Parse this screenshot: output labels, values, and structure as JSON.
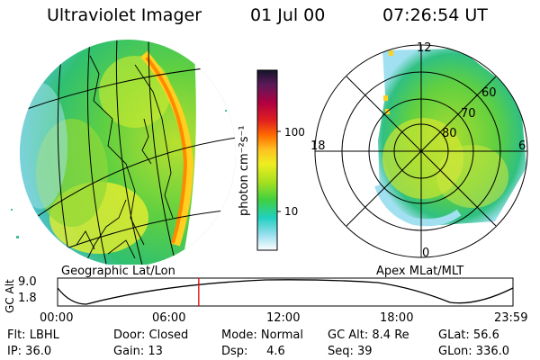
{
  "header": {
    "title": "Ultraviolet Imager",
    "date": "01 Jul 00",
    "time": "07:26:54 UT"
  },
  "colorbar": {
    "unit_label": "photon cm⁻²s⁻¹",
    "ticks": [
      "100",
      "10"
    ],
    "colors": [
      "#1a1a2a",
      "#5a1a5a",
      "#b00040",
      "#e02020",
      "#ff6a00",
      "#ffc020",
      "#eeee20",
      "#a8e020",
      "#40d040",
      "#20d0c0",
      "#a0e0f0",
      "#ffffff"
    ]
  },
  "left_panel": {
    "caption": "Geographic Lat/Lon"
  },
  "right_panel": {
    "caption": "Apex MLat/MLT",
    "mlt_labels": {
      "top": "12",
      "left": "18",
      "right": "6",
      "bottom": "0"
    },
    "lat_labels": [
      "60",
      "70",
      "80"
    ]
  },
  "timeline": {
    "ylabel": "GC Alt",
    "yticks": [
      "9.0",
      "1.8"
    ],
    "xticks": [
      "00:00",
      "06:00",
      "12:00",
      "18:00",
      "23:59"
    ],
    "current_time_fraction": 0.31,
    "marker_color": "#e00000"
  },
  "status": {
    "flt": "Flt: LBHL",
    "door": "Door: Closed",
    "mode": "Mode: Normal",
    "gcalt": "GC Alt: 8.4 Re",
    "glat": "GLat:  56.6",
    "ip": "IP: 36.0",
    "gain": "Gain: 13",
    "dsp": "Dsp:     4.6",
    "seq": "Seq: 39",
    "glon": "GLon: 336.0"
  }
}
